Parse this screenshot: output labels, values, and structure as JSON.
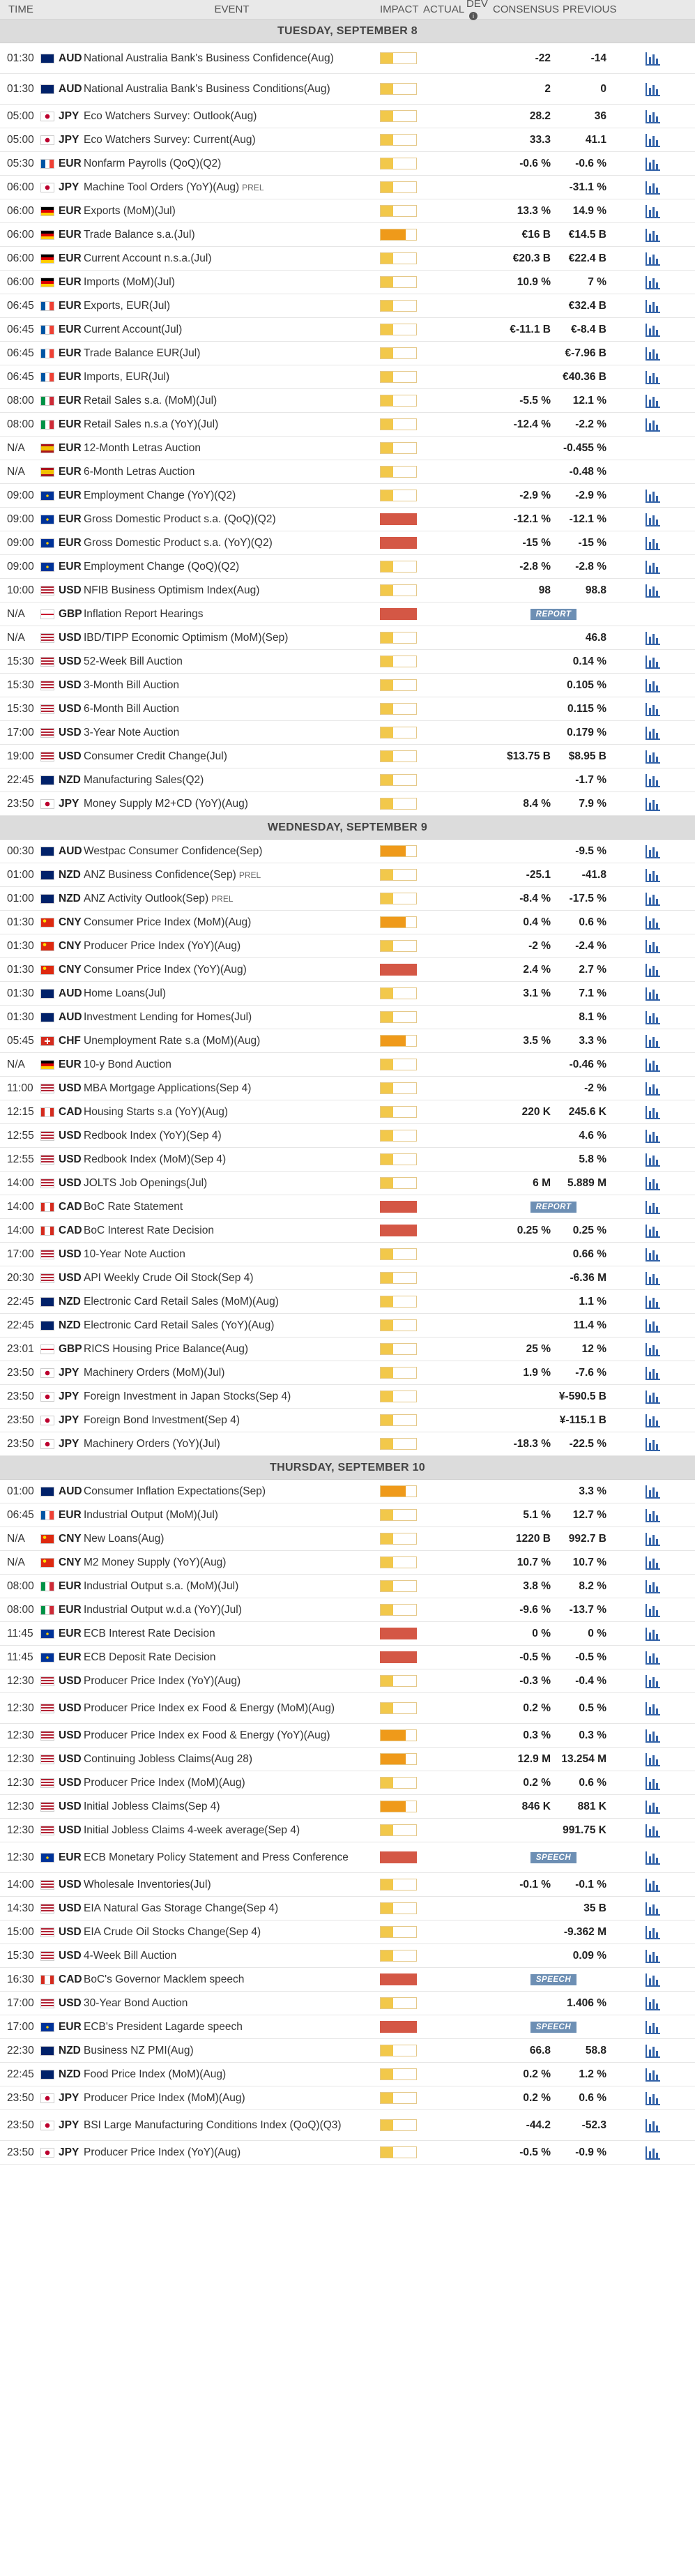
{
  "headers": {
    "time": "TIME",
    "event": "EVENT",
    "impact": "IMPACT",
    "actual": "ACTUAL",
    "dev": "DEV",
    "consensus": "CONSENSUS",
    "previous": "PREVIOUS"
  },
  "days": [
    {
      "title": "TUESDAY, SEPTEMBER 8",
      "events": [
        {
          "time": "01:30",
          "cur": "AUD",
          "name": "National Australia Bank's Business Confidence(Aug)",
          "imp": "low",
          "cons": "-22",
          "prev": "-14",
          "tall": true
        },
        {
          "time": "01:30",
          "cur": "AUD",
          "name": "National Australia Bank's Business Conditions(Aug)",
          "imp": "low",
          "cons": "2",
          "prev": "0",
          "tall": true
        },
        {
          "time": "05:00",
          "cur": "JPY",
          "name": "Eco Watchers Survey: Outlook(Aug)",
          "imp": "low",
          "cons": "28.2",
          "prev": "36"
        },
        {
          "time": "05:00",
          "cur": "JPY",
          "name": "Eco Watchers Survey: Current(Aug)",
          "imp": "low",
          "cons": "33.3",
          "prev": "41.1"
        },
        {
          "time": "05:30",
          "cur": "EUR",
          "name": "Nonfarm Payrolls (QoQ)(Q2)",
          "imp": "low",
          "cons": "-0.6 %",
          "prev": "-0.6 %",
          "ctry": "fr"
        },
        {
          "time": "06:00",
          "cur": "JPY",
          "name": "Machine Tool Orders (YoY)(Aug)",
          "tag": "PREL",
          "imp": "low",
          "cons": "",
          "prev": "-31.1 %"
        },
        {
          "time": "06:00",
          "cur": "EUR",
          "name": "Exports (MoM)(Jul)",
          "imp": "low",
          "cons": "13.3 %",
          "prev": "14.9 %",
          "ctry": "de"
        },
        {
          "time": "06:00",
          "cur": "EUR",
          "name": "Trade Balance s.a.(Jul)",
          "imp": "med",
          "cons": "€16 B",
          "prev": "€14.5 B",
          "ctry": "de"
        },
        {
          "time": "06:00",
          "cur": "EUR",
          "name": "Current Account n.s.a.(Jul)",
          "imp": "low",
          "cons": "€20.3 B",
          "prev": "€22.4 B",
          "ctry": "de"
        },
        {
          "time": "06:00",
          "cur": "EUR",
          "name": "Imports (MoM)(Jul)",
          "imp": "low",
          "cons": "10.9 %",
          "prev": "7 %",
          "ctry": "de"
        },
        {
          "time": "06:45",
          "cur": "EUR",
          "name": "Exports, EUR(Jul)",
          "imp": "low",
          "cons": "",
          "prev": "€32.4 B",
          "ctry": "fr"
        },
        {
          "time": "06:45",
          "cur": "EUR",
          "name": "Current Account(Jul)",
          "imp": "low",
          "cons": "€-11.1 B",
          "prev": "€-8.4 B",
          "ctry": "fr"
        },
        {
          "time": "06:45",
          "cur": "EUR",
          "name": "Trade Balance EUR(Jul)",
          "imp": "low",
          "cons": "",
          "prev": "€-7.96 B",
          "ctry": "fr"
        },
        {
          "time": "06:45",
          "cur": "EUR",
          "name": "Imports, EUR(Jul)",
          "imp": "low",
          "cons": "",
          "prev": "€40.36 B",
          "ctry": "fr"
        },
        {
          "time": "08:00",
          "cur": "EUR",
          "name": "Retail Sales s.a. (MoM)(Jul)",
          "imp": "low",
          "cons": "-5.5 %",
          "prev": "12.1 %",
          "ctry": "it"
        },
        {
          "time": "08:00",
          "cur": "EUR",
          "name": "Retail Sales n.s.a (YoY)(Jul)",
          "imp": "low",
          "cons": "-12.4 %",
          "prev": "-2.2 %",
          "ctry": "it"
        },
        {
          "time": "N/A",
          "cur": "EUR",
          "name": "12-Month Letras Auction",
          "imp": "low",
          "cons": "",
          "prev": "-0.455 %",
          "ctry": "es",
          "nochart": true
        },
        {
          "time": "N/A",
          "cur": "EUR",
          "name": "6-Month Letras Auction",
          "imp": "low",
          "cons": "",
          "prev": "-0.48 %",
          "ctry": "es",
          "nochart": true
        },
        {
          "time": "09:00",
          "cur": "EUR",
          "name": "Employment Change (YoY)(Q2)",
          "imp": "low",
          "cons": "-2.9 %",
          "prev": "-2.9 %"
        },
        {
          "time": "09:00",
          "cur": "EUR",
          "name": "Gross Domestic Product s.a. (QoQ)(Q2)",
          "imp": "high",
          "cons": "-12.1 %",
          "prev": "-12.1 %"
        },
        {
          "time": "09:00",
          "cur": "EUR",
          "name": "Gross Domestic Product s.a. (YoY)(Q2)",
          "imp": "high",
          "cons": "-15 %",
          "prev": "-15 %"
        },
        {
          "time": "09:00",
          "cur": "EUR",
          "name": "Employment Change (QoQ)(Q2)",
          "imp": "low",
          "cons": "-2.8 %",
          "prev": "-2.8 %"
        },
        {
          "time": "10:00",
          "cur": "USD",
          "name": "NFIB Business Optimism Index(Aug)",
          "imp": "low",
          "cons": "98",
          "prev": "98.8"
        },
        {
          "time": "N/A",
          "cur": "GBP",
          "name": "Inflation Report Hearings",
          "imp": "high",
          "cons": "",
          "prev": "",
          "badge": "REPORT",
          "nochart": true
        },
        {
          "time": "N/A",
          "cur": "USD",
          "name": "IBD/TIPP Economic Optimism (MoM)(Sep)",
          "imp": "low",
          "cons": "",
          "prev": "46.8"
        },
        {
          "time": "15:30",
          "cur": "USD",
          "name": "52-Week Bill Auction",
          "imp": "low",
          "cons": "",
          "prev": "0.14 %"
        },
        {
          "time": "15:30",
          "cur": "USD",
          "name": "3-Month Bill Auction",
          "imp": "low",
          "cons": "",
          "prev": "0.105 %"
        },
        {
          "time": "15:30",
          "cur": "USD",
          "name": "6-Month Bill Auction",
          "imp": "low",
          "cons": "",
          "prev": "0.115 %"
        },
        {
          "time": "17:00",
          "cur": "USD",
          "name": "3-Year Note Auction",
          "imp": "low",
          "cons": "",
          "prev": "0.179 %"
        },
        {
          "time": "19:00",
          "cur": "USD",
          "name": "Consumer Credit Change(Jul)",
          "imp": "low",
          "cons": "$13.75 B",
          "prev": "$8.95 B"
        },
        {
          "time": "22:45",
          "cur": "NZD",
          "name": "Manufacturing Sales(Q2)",
          "imp": "low",
          "cons": "",
          "prev": "-1.7 %"
        },
        {
          "time": "23:50",
          "cur": "JPY",
          "name": "Money Supply M2+CD (YoY)(Aug)",
          "imp": "low",
          "cons": "8.4 %",
          "prev": "7.9 %"
        }
      ]
    },
    {
      "title": "WEDNESDAY, SEPTEMBER 9",
      "events": [
        {
          "time": "00:30",
          "cur": "AUD",
          "name": "Westpac Consumer Confidence(Sep)",
          "imp": "med",
          "cons": "",
          "prev": "-9.5 %"
        },
        {
          "time": "01:00",
          "cur": "NZD",
          "name": "ANZ Business Confidence(Sep)",
          "tag": "PREL",
          "imp": "low",
          "cons": "-25.1",
          "prev": "-41.8"
        },
        {
          "time": "01:00",
          "cur": "NZD",
          "name": "ANZ Activity Outlook(Sep)",
          "tag": "PREL",
          "imp": "low",
          "cons": "-8.4 %",
          "prev": "-17.5 %"
        },
        {
          "time": "01:30",
          "cur": "CNY",
          "name": "Consumer Price Index (MoM)(Aug)",
          "imp": "med",
          "cons": "0.4 %",
          "prev": "0.6 %"
        },
        {
          "time": "01:30",
          "cur": "CNY",
          "name": "Producer Price Index (YoY)(Aug)",
          "imp": "low",
          "cons": "-2 %",
          "prev": "-2.4 %"
        },
        {
          "time": "01:30",
          "cur": "CNY",
          "name": "Consumer Price Index (YoY)(Aug)",
          "imp": "high",
          "cons": "2.4 %",
          "prev": "2.7 %"
        },
        {
          "time": "01:30",
          "cur": "AUD",
          "name": "Home Loans(Jul)",
          "imp": "low",
          "cons": "3.1 %",
          "prev": "7.1 %"
        },
        {
          "time": "01:30",
          "cur": "AUD",
          "name": "Investment Lending for Homes(Jul)",
          "imp": "low",
          "cons": "",
          "prev": "8.1 %"
        },
        {
          "time": "05:45",
          "cur": "CHF",
          "name": "Unemployment Rate s.a (MoM)(Aug)",
          "imp": "med",
          "cons": "3.5 %",
          "prev": "3.3 %"
        },
        {
          "time": "N/A",
          "cur": "EUR",
          "name": "10-y Bond Auction",
          "imp": "low",
          "cons": "",
          "prev": "-0.46 %",
          "ctry": "de"
        },
        {
          "time": "11:00",
          "cur": "USD",
          "name": "MBA Mortgage Applications(Sep 4)",
          "imp": "low",
          "cons": "",
          "prev": "-2 %"
        },
        {
          "time": "12:15",
          "cur": "CAD",
          "name": "Housing Starts s.a (YoY)(Aug)",
          "imp": "low",
          "cons": "220 K",
          "prev": "245.6 K"
        },
        {
          "time": "12:55",
          "cur": "USD",
          "name": "Redbook Index (YoY)(Sep 4)",
          "imp": "low",
          "cons": "",
          "prev": "4.6 %"
        },
        {
          "time": "12:55",
          "cur": "USD",
          "name": "Redbook Index (MoM)(Sep 4)",
          "imp": "low",
          "cons": "",
          "prev": "5.8 %"
        },
        {
          "time": "14:00",
          "cur": "USD",
          "name": "JOLTS Job Openings(Jul)",
          "imp": "low",
          "cons": "6 M",
          "prev": "5.889 M"
        },
        {
          "time": "14:00",
          "cur": "CAD",
          "name": "BoC Rate Statement",
          "imp": "high",
          "cons": "",
          "prev": "",
          "badge": "REPORT"
        },
        {
          "time": "14:00",
          "cur": "CAD",
          "name": "BoC Interest Rate Decision",
          "imp": "high",
          "cons": "0.25 %",
          "prev": "0.25 %"
        },
        {
          "time": "17:00",
          "cur": "USD",
          "name": "10-Year Note Auction",
          "imp": "low",
          "cons": "",
          "prev": "0.66 %"
        },
        {
          "time": "20:30",
          "cur": "USD",
          "name": "API Weekly Crude Oil Stock(Sep 4)",
          "imp": "low",
          "cons": "",
          "prev": "-6.36 M"
        },
        {
          "time": "22:45",
          "cur": "NZD",
          "name": "Electronic Card Retail Sales (MoM)(Aug)",
          "imp": "low",
          "cons": "",
          "prev": "1.1 %"
        },
        {
          "time": "22:45",
          "cur": "NZD",
          "name": "Electronic Card Retail Sales (YoY)(Aug)",
          "imp": "low",
          "cons": "",
          "prev": "11.4 %"
        },
        {
          "time": "23:01",
          "cur": "GBP",
          "name": "RICS Housing Price Balance(Aug)",
          "imp": "low",
          "cons": "25 %",
          "prev": "12 %"
        },
        {
          "time": "23:50",
          "cur": "JPY",
          "name": "Machinery Orders (MoM)(Jul)",
          "imp": "low",
          "cons": "1.9 %",
          "prev": "-7.6 %"
        },
        {
          "time": "23:50",
          "cur": "JPY",
          "name": "Foreign Investment in Japan Stocks(Sep 4)",
          "imp": "low",
          "cons": "",
          "prev": "¥-590.5 B"
        },
        {
          "time": "23:50",
          "cur": "JPY",
          "name": "Foreign Bond Investment(Sep 4)",
          "imp": "low",
          "cons": "",
          "prev": "¥-115.1 B"
        },
        {
          "time": "23:50",
          "cur": "JPY",
          "name": "Machinery Orders (YoY)(Jul)",
          "imp": "low",
          "cons": "-18.3 %",
          "prev": "-22.5 %"
        }
      ]
    },
    {
      "title": "THURSDAY, SEPTEMBER 10",
      "events": [
        {
          "time": "01:00",
          "cur": "AUD",
          "name": "Consumer Inflation Expectations(Sep)",
          "imp": "med",
          "cons": "",
          "prev": "3.3 %"
        },
        {
          "time": "06:45",
          "cur": "EUR",
          "name": "Industrial Output (MoM)(Jul)",
          "imp": "low",
          "cons": "5.1 %",
          "prev": "12.7 %",
          "ctry": "fr"
        },
        {
          "time": "N/A",
          "cur": "CNY",
          "name": "New Loans(Aug)",
          "imp": "low",
          "cons": "1220 B",
          "prev": "992.7 B"
        },
        {
          "time": "N/A",
          "cur": "CNY",
          "name": "M2 Money Supply (YoY)(Aug)",
          "imp": "low",
          "cons": "10.7 %",
          "prev": "10.7 %"
        },
        {
          "time": "08:00",
          "cur": "EUR",
          "name": "Industrial Output s.a. (MoM)(Jul)",
          "imp": "low",
          "cons": "3.8 %",
          "prev": "8.2 %",
          "ctry": "it"
        },
        {
          "time": "08:00",
          "cur": "EUR",
          "name": "Industrial Output w.d.a (YoY)(Jul)",
          "imp": "low",
          "cons": "-9.6 %",
          "prev": "-13.7 %",
          "ctry": "it"
        },
        {
          "time": "11:45",
          "cur": "EUR",
          "name": "ECB Interest Rate Decision",
          "imp": "high",
          "cons": "0 %",
          "prev": "0 %"
        },
        {
          "time": "11:45",
          "cur": "EUR",
          "name": "ECB Deposit Rate Decision",
          "imp": "high",
          "cons": "-0.5 %",
          "prev": "-0.5 %"
        },
        {
          "time": "12:30",
          "cur": "USD",
          "name": "Producer Price Index (YoY)(Aug)",
          "imp": "low",
          "cons": "-0.3 %",
          "prev": "-0.4 %"
        },
        {
          "time": "12:30",
          "cur": "USD",
          "name": "Producer Price Index ex Food & Energy (MoM)(Aug)",
          "imp": "low",
          "cons": "0.2 %",
          "prev": "0.5 %",
          "tall": true
        },
        {
          "time": "12:30",
          "cur": "USD",
          "name": "Producer Price Index ex Food & Energy (YoY)(Aug)",
          "imp": "med",
          "cons": "0.3 %",
          "prev": "0.3 %"
        },
        {
          "time": "12:30",
          "cur": "USD",
          "name": "Continuing Jobless Claims(Aug 28)",
          "imp": "med",
          "cons": "12.9 M",
          "prev": "13.254 M"
        },
        {
          "time": "12:30",
          "cur": "USD",
          "name": "Producer Price Index (MoM)(Aug)",
          "imp": "low",
          "cons": "0.2 %",
          "prev": "0.6 %"
        },
        {
          "time": "12:30",
          "cur": "USD",
          "name": "Initial Jobless Claims(Sep 4)",
          "imp": "med",
          "cons": "846 K",
          "prev": "881 K"
        },
        {
          "time": "12:30",
          "cur": "USD",
          "name": "Initial Jobless Claims 4-week average(Sep 4)",
          "imp": "low",
          "cons": "",
          "prev": "991.75 K"
        },
        {
          "time": "12:30",
          "cur": "EUR",
          "name": "ECB Monetary Policy Statement and Press Conference",
          "imp": "high",
          "cons": "",
          "prev": "",
          "badge": "SPEECH",
          "tall": true
        },
        {
          "time": "14:00",
          "cur": "USD",
          "name": "Wholesale Inventories(Jul)",
          "imp": "low",
          "cons": "-0.1 %",
          "prev": "-0.1 %"
        },
        {
          "time": "14:30",
          "cur": "USD",
          "name": "EIA Natural Gas Storage Change(Sep 4)",
          "imp": "low",
          "cons": "",
          "prev": "35 B"
        },
        {
          "time": "15:00",
          "cur": "USD",
          "name": "EIA Crude Oil Stocks Change(Sep 4)",
          "imp": "low",
          "cons": "",
          "prev": "-9.362 M"
        },
        {
          "time": "15:30",
          "cur": "USD",
          "name": "4-Week Bill Auction",
          "imp": "low",
          "cons": "",
          "prev": "0.09 %"
        },
        {
          "time": "16:30",
          "cur": "CAD",
          "name": "BoC's Governor Macklem speech",
          "imp": "high",
          "cons": "",
          "prev": "",
          "badge": "SPEECH"
        },
        {
          "time": "17:00",
          "cur": "USD",
          "name": "30-Year Bond Auction",
          "imp": "low",
          "cons": "",
          "prev": "1.406 %"
        },
        {
          "time": "17:00",
          "cur": "EUR",
          "name": "ECB's President Lagarde speech",
          "imp": "high",
          "cons": "",
          "prev": "",
          "badge": "SPEECH"
        },
        {
          "time": "22:30",
          "cur": "NZD",
          "name": "Business NZ PMI(Aug)",
          "imp": "low",
          "cons": "66.8",
          "prev": "58.8"
        },
        {
          "time": "22:45",
          "cur": "NZD",
          "name": "Food Price Index (MoM)(Aug)",
          "imp": "low",
          "cons": "0.2 %",
          "prev": "1.2 %"
        },
        {
          "time": "23:50",
          "cur": "JPY",
          "name": "Producer Price Index (MoM)(Aug)",
          "imp": "low",
          "cons": "0.2 %",
          "prev": "0.6 %"
        },
        {
          "time": "23:50",
          "cur": "JPY",
          "name": "BSI Large Manufacturing Conditions Index (QoQ)(Q3)",
          "imp": "low",
          "cons": "-44.2",
          "prev": "-52.3",
          "tall": true
        },
        {
          "time": "23:50",
          "cur": "JPY",
          "name": "Producer Price Index (YoY)(Aug)",
          "imp": "low",
          "cons": "-0.5 %",
          "prev": "-0.9 %"
        }
      ]
    }
  ]
}
